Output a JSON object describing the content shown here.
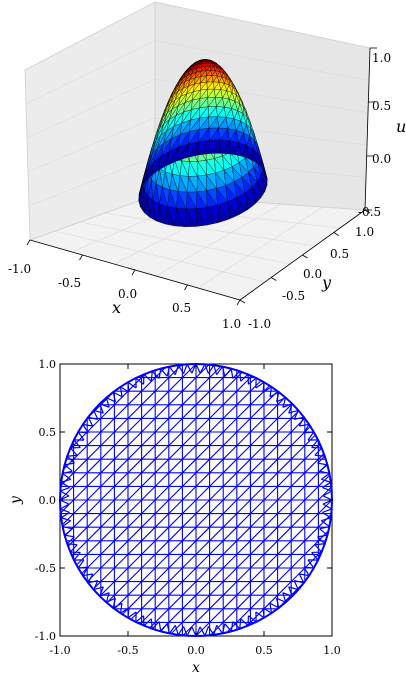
{
  "figure": {
    "background": "#ffffff"
  },
  "chart_data": [
    {
      "type": "surface",
      "surface": "u(x,y) = 1 - x^2 - y^2 on the unit disk, triangular mesh",
      "colormap": "jet",
      "xlabel": "x",
      "ylabel": "y",
      "zlabel": "u",
      "xlim": [
        -1.0,
        1.0
      ],
      "ylim": [
        -1.0,
        1.0
      ],
      "zlim": [
        -0.5,
        1.0
      ],
      "xticks": [
        "-1.0",
        "-0.5",
        "0.0",
        "0.5",
        "1.0"
      ],
      "yticks": [
        "-1.0",
        "-0.5",
        "0.0",
        "0.5",
        "1.0"
      ],
      "zticks": [
        "-0.5",
        "0.0",
        "0.5",
        "1.0"
      ],
      "grid": true
    },
    {
      "type": "mesh",
      "description": "triangular finite-element mesh of the unit disk",
      "line_color": "#0000ff",
      "xlabel": "x",
      "ylabel": "y",
      "xlim": [
        -1.0,
        1.0
      ],
      "ylim": [
        -1.0,
        1.0
      ],
      "xticks": [
        "-1.0",
        "-0.5",
        "0.0",
        "0.5",
        "1.0"
      ],
      "yticks": [
        "-1.0",
        "-0.5",
        "0.0",
        "0.5",
        "1.0"
      ],
      "grid_step": 0.1,
      "radius": 1.0
    }
  ]
}
